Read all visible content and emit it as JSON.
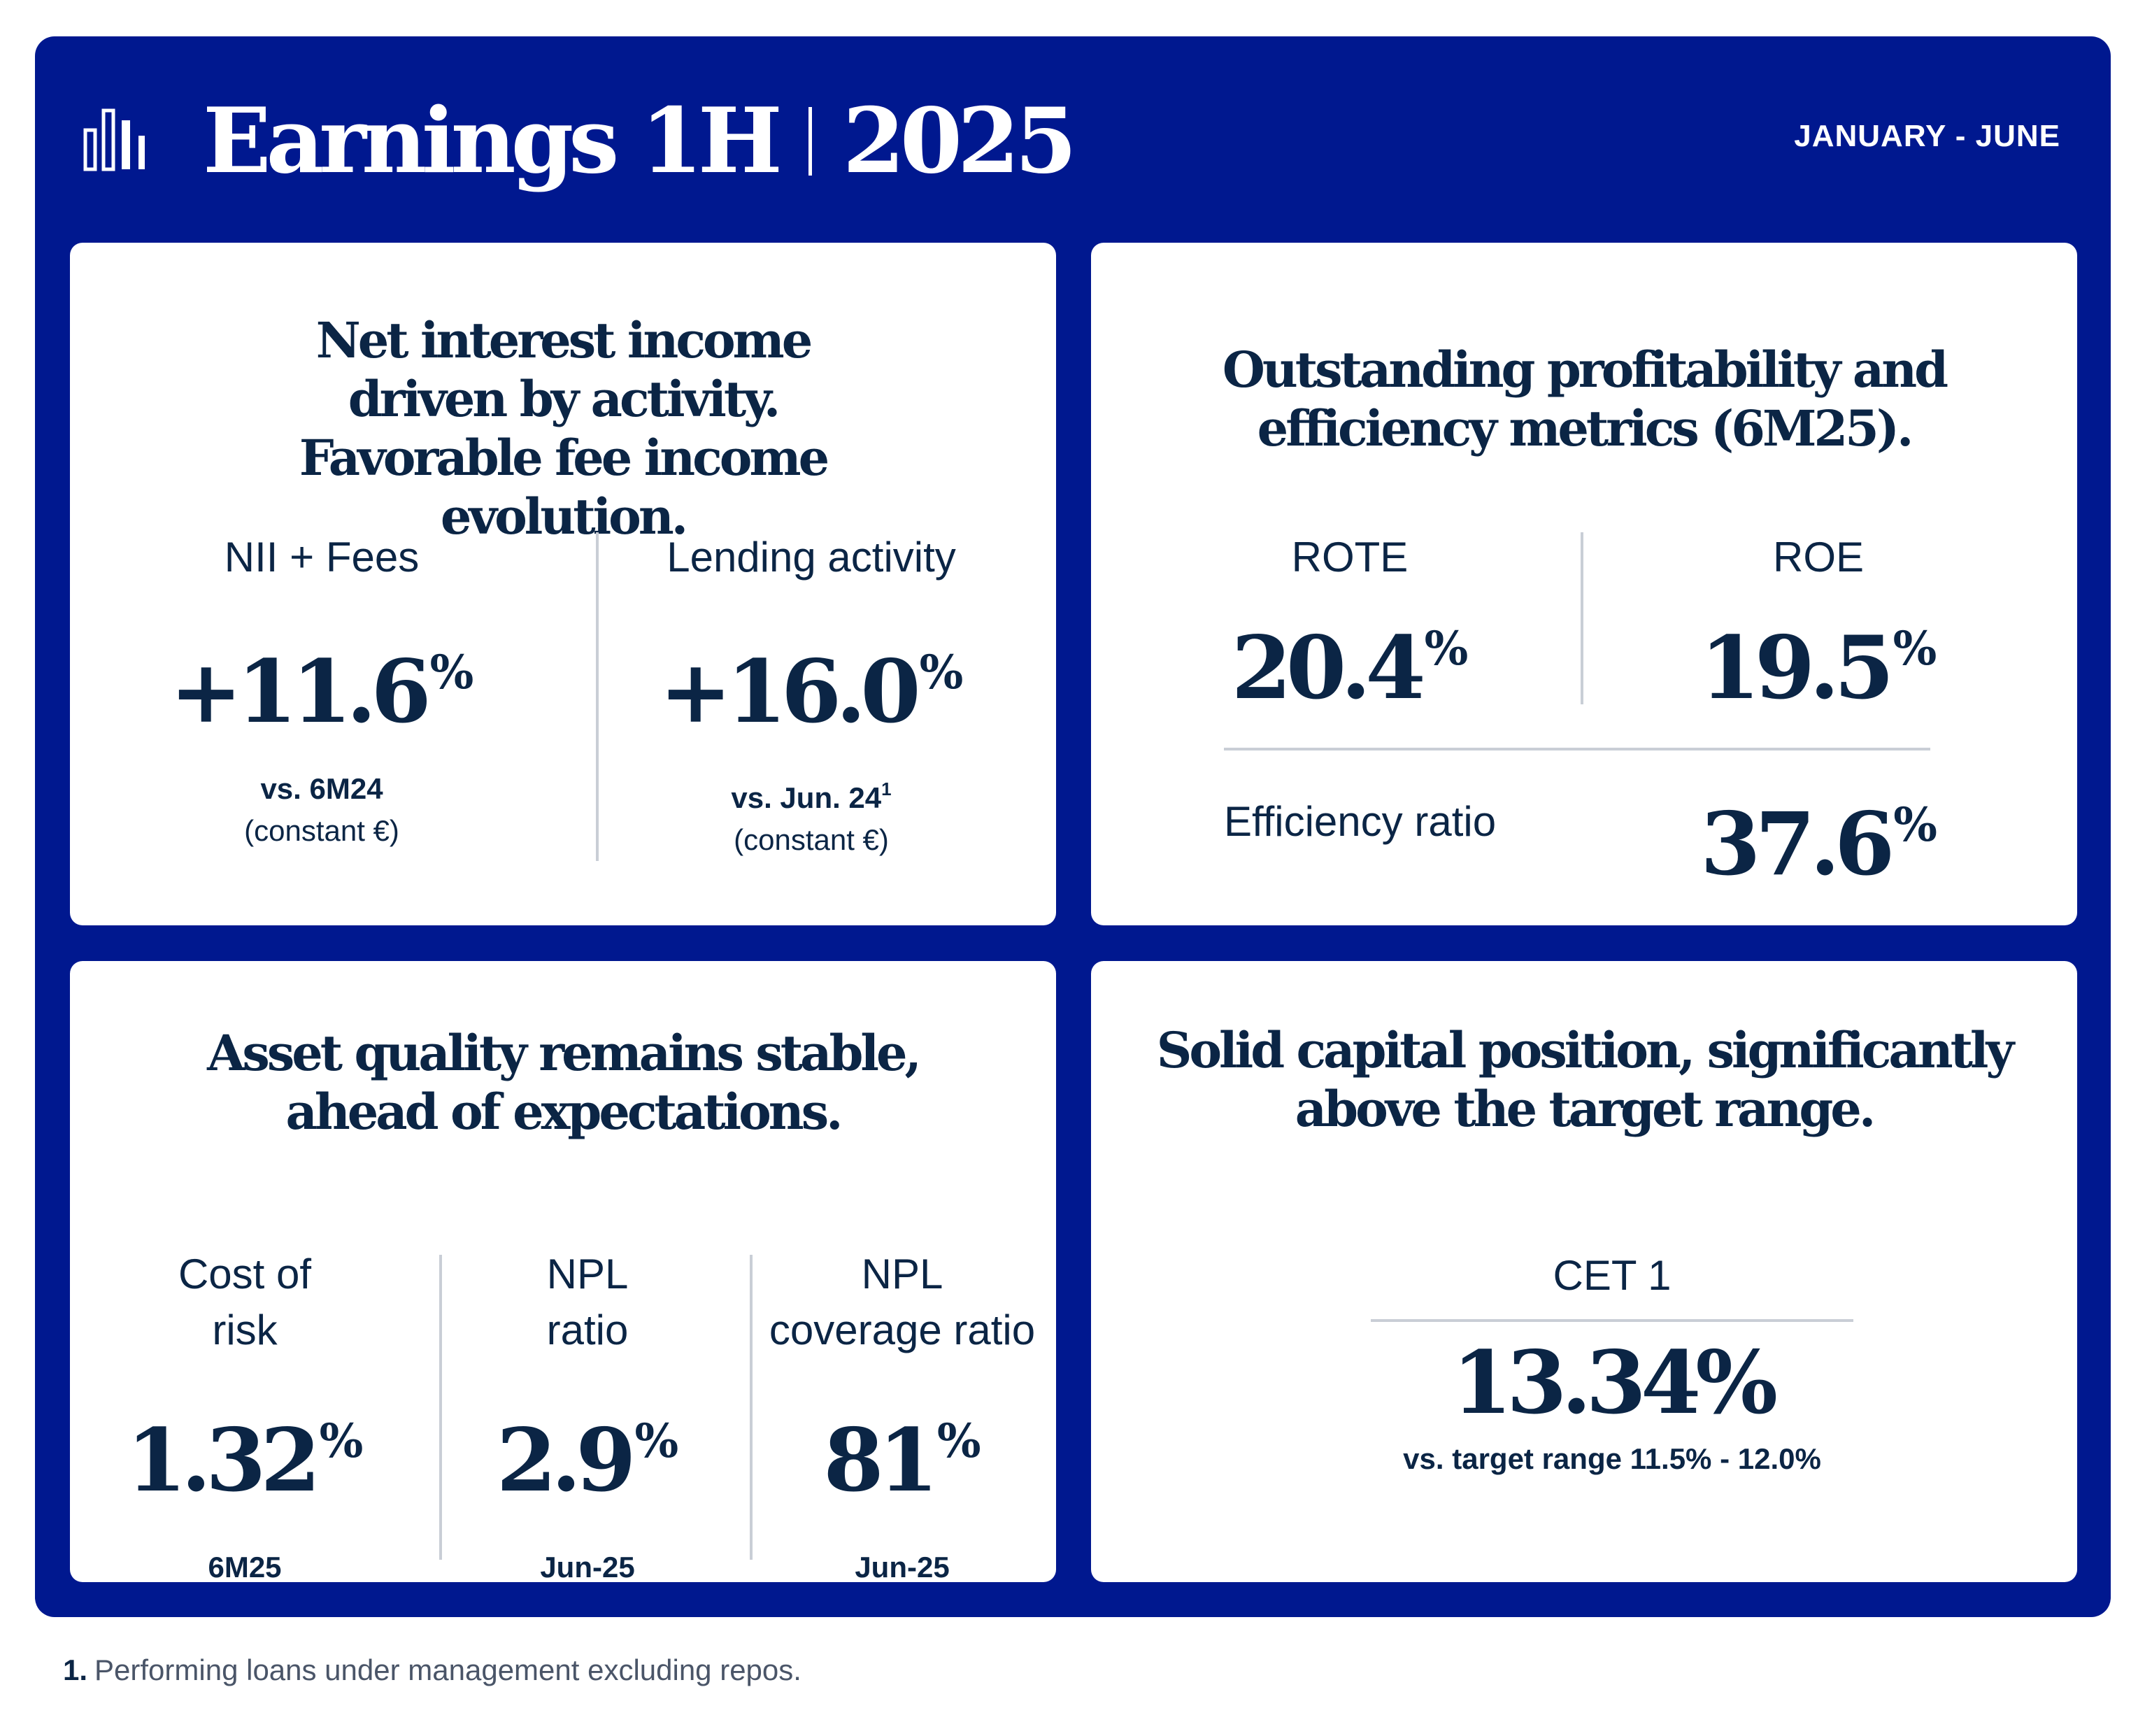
{
  "header": {
    "title_main": "Earnings 1H",
    "title_year": "2025",
    "period": "JANUARY - JUNE",
    "logo_icon": "bar-chart-icon"
  },
  "cards": {
    "nii": {
      "heading": "Net interest income driven by activity. Favorable fee income evolution.",
      "metrics": [
        {
          "label": "NII + Fees",
          "value": "+11.6",
          "unit": "%",
          "note": "vs. 6M24",
          "sub": "(constant €)"
        },
        {
          "label": "Lending activity",
          "value": "+16.0",
          "unit": "%",
          "note": "vs. Jun. 24",
          "sup": "1",
          "sub": "(constant €)"
        }
      ]
    },
    "profitability": {
      "heading": "Outstanding profitability and efficiency metrics (6M25).",
      "metrics": [
        {
          "label": "ROTE",
          "value": "20.4",
          "unit": "%"
        },
        {
          "label": "ROE",
          "value": "19.5",
          "unit": "%"
        }
      ],
      "efficiency": {
        "label": "Efficiency ratio",
        "value": "37.6",
        "unit": "%"
      }
    },
    "asset_quality": {
      "heading": "Asset quality remains stable, ahead of expectations.",
      "metrics": [
        {
          "label_line1": "Cost of",
          "label_line2": "risk",
          "value": "1.32",
          "unit": "%",
          "note": "6M25"
        },
        {
          "label_line1": "NPL",
          "label_line2": "ratio",
          "value": "2.9",
          "unit": "%",
          "note": "Jun-25"
        },
        {
          "label_line1": "NPL",
          "label_line2": "coverage ratio",
          "value": "81",
          "unit": "%",
          "note": "Jun-25"
        }
      ]
    },
    "capital": {
      "heading": "Solid capital position, significantly above the target range.",
      "label": "CET 1",
      "value": "13.34%",
      "note": "vs. target range 11.5% - 12.0%"
    }
  },
  "footnote": {
    "number": "1.",
    "text": "Performing loans under management excluding repos."
  },
  "colors": {
    "brand_blue": "#00188f",
    "text_navy": "#0b2545",
    "divider": "#c9ced6"
  }
}
